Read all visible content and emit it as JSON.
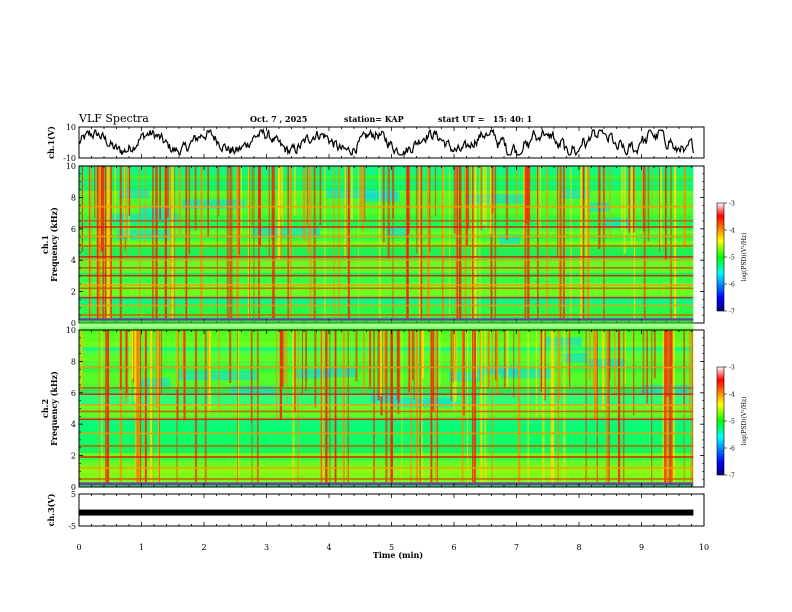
{
  "header": {
    "title": "VLF Spectra",
    "date": "Oct. 7 , 2025",
    "station": "station= KAP",
    "start": "start UT =   15: 40: 1"
  },
  "chart_data": [
    {
      "type": "line",
      "name": "waveform-ch1",
      "ylabel": "ch.1(V)",
      "ylim": [
        -10,
        10
      ],
      "yticks": [
        "10",
        "-10"
      ],
      "xlim": [
        0,
        10
      ],
      "x_end": 9.83
    },
    {
      "type": "heatmap",
      "name": "spectrogram-ch1",
      "ylabel": "ch.1\nFrequency (kHz)",
      "ylim": [
        0,
        10
      ],
      "yticks": [
        "0",
        "2",
        "4",
        "6",
        "8",
        "10"
      ],
      "xlim": [
        0,
        10
      ],
      "x_end": 9.83,
      "colorbar": {
        "label": "log(PSD)(V²/Hz)",
        "range": [
          -7,
          -3
        ],
        "ticks": [
          "-3",
          "-4",
          "-5",
          "-6",
          "-7"
        ]
      },
      "bands_khz": [
        0.2,
        0.5,
        1.1,
        1.6,
        2.2,
        2.4,
        3.0,
        3.5,
        4.0,
        4.2,
        4.9,
        5.5,
        6.1,
        6.5,
        7.4
      ]
    },
    {
      "type": "heatmap",
      "name": "spectrogram-ch2",
      "ylabel": "ch.2\nFrequency (kHz)",
      "ylim": [
        0,
        10
      ],
      "yticks": [
        "0",
        "2",
        "4",
        "6",
        "8",
        "10"
      ],
      "xlim": [
        0,
        10
      ],
      "x_end": 9.83,
      "colorbar": {
        "label": "log(PSD)(V²/Hz)",
        "range": [
          -7,
          -3
        ],
        "ticks": [
          "-3",
          "-4",
          "-5",
          "-6",
          "-7"
        ]
      },
      "bands_khz": [
        0.2,
        0.5,
        1.2,
        1.9,
        2.6,
        3.4,
        4.3,
        4.8,
        5.2,
        5.9,
        6.3,
        7.6
      ]
    },
    {
      "type": "line",
      "name": "waveform-ch3",
      "ylabel": "ch.3(V)",
      "ylim": [
        -5,
        5
      ],
      "yticks": [
        "5",
        "-5"
      ],
      "xlim": [
        0,
        10
      ],
      "x_end": 9.83,
      "level": -0.8
    }
  ],
  "xaxis": {
    "label": "Time (min)",
    "ticks": [
      "0",
      "1",
      "2",
      "3",
      "4",
      "5",
      "6",
      "7",
      "8",
      "9",
      "10"
    ]
  }
}
